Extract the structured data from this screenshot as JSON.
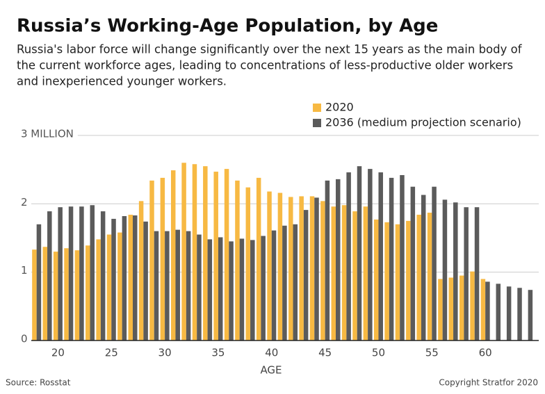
{
  "chart_data": {
    "type": "grouped_bar",
    "title": "Russia’s Working-Age Population, by Age",
    "subtitle": [
      "Russia's labor force will change significantly over the next 15 years as the main body of",
      "the current workforce ages, leading to concentrations of less-productive older workers",
      "and inexperienced younger workers."
    ],
    "x_label": "AGE",
    "x": [
      18,
      19,
      20,
      21,
      22,
      23,
      24,
      25,
      26,
      27,
      28,
      29,
      30,
      31,
      32,
      33,
      34,
      35,
      36,
      37,
      38,
      39,
      40,
      41,
      42,
      43,
      44,
      45,
      46,
      47,
      48,
      49,
      50,
      51,
      52,
      53,
      54,
      55,
      56,
      57,
      58,
      59,
      60,
      61,
      62,
      63,
      64
    ],
    "series": [
      {
        "name": "2020",
        "color": "#f7b943",
        "values": [
          1.33,
          1.37,
          1.3,
          1.35,
          1.32,
          1.39,
          1.48,
          1.55,
          1.58,
          1.84,
          2.04,
          2.34,
          2.38,
          2.49,
          2.6,
          2.58,
          2.55,
          2.47,
          2.51,
          2.34,
          2.24,
          2.38,
          2.18,
          2.16,
          2.1,
          2.11,
          2.11,
          2.04,
          1.96,
          1.98,
          1.89,
          1.96,
          1.77,
          1.73,
          1.7,
          1.75,
          1.84,
          1.87,
          0.9,
          0.92,
          0.95,
          1.01,
          0.9,
          null,
          null,
          null,
          null
        ]
      },
      {
        "name": "2036 (medium projection scenario)",
        "color": "#5b5b5b",
        "values": [
          1.7,
          1.89,
          1.95,
          1.96,
          1.96,
          1.98,
          1.89,
          1.78,
          1.82,
          1.83,
          1.74,
          1.6,
          1.6,
          1.62,
          1.6,
          1.55,
          1.48,
          1.51,
          1.45,
          1.49,
          1.47,
          1.53,
          1.61,
          1.68,
          1.7,
          1.91,
          2.09,
          2.34,
          2.36,
          2.46,
          2.55,
          2.51,
          2.46,
          2.38,
          2.42,
          2.25,
          2.13,
          2.25,
          2.06,
          2.02,
          1.95,
          1.95,
          0.86,
          0.83,
          0.79,
          0.77,
          0.74
        ]
      }
    ],
    "xlim": [
      17.5,
      65
    ],
    "xticks": [
      20,
      25,
      30,
      35,
      40,
      45,
      50,
      55,
      60
    ],
    "ylim": [
      0,
      3.05
    ],
    "yticks": [
      0,
      1,
      2,
      {
        "value": 3,
        "label": "3 MILLION"
      }
    ],
    "grid": true,
    "source": "Source: Rosstat",
    "credit": "Copyright Stratfor 2020"
  }
}
